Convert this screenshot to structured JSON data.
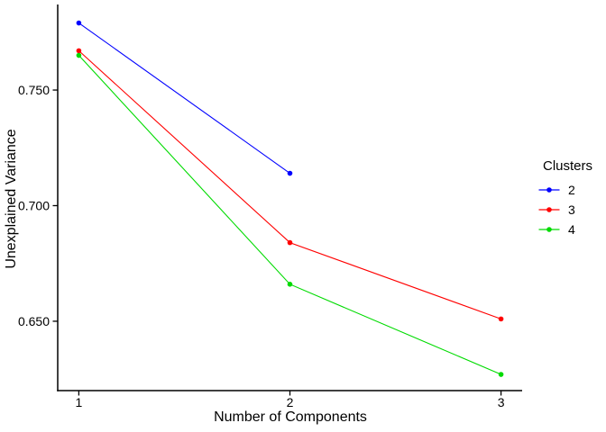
{
  "chart_data": {
    "type": "line",
    "xlabel": "Number of Components",
    "ylabel": "Unexplained Variance",
    "xlim": [
      0.9,
      3.1
    ],
    "ylim": [
      0.62,
      0.787
    ],
    "xticks": {
      "values": [
        1,
        2,
        3
      ],
      "labels": [
        "1",
        "2",
        "3"
      ]
    },
    "yticks": {
      "values": [
        0.65,
        0.7,
        0.75
      ],
      "labels": [
        "0.650",
        "0.700",
        "0.750"
      ]
    },
    "grid": false,
    "legend": {
      "title": "Clusters",
      "position": "right"
    },
    "series": [
      {
        "name": "2",
        "color": "#0000FF",
        "x": [
          1,
          2
        ],
        "values": [
          0.779,
          0.714
        ]
      },
      {
        "name": "3",
        "color": "#FF0000",
        "x": [
          1,
          2,
          3
        ],
        "values": [
          0.767,
          0.684,
          0.651
        ]
      },
      {
        "name": "4",
        "color": "#00DB00",
        "x": [
          1,
          2,
          3
        ],
        "values": [
          0.765,
          0.666,
          0.627
        ]
      }
    ],
    "colors": {
      "axis": "#000000",
      "text": "#000000",
      "background": "#FFFFFF"
    }
  }
}
